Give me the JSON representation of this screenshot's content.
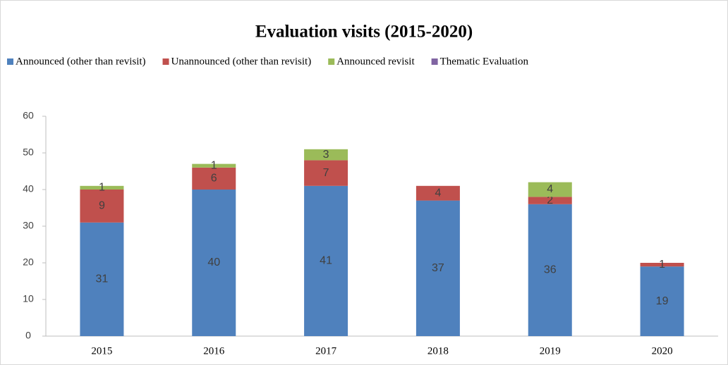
{
  "chart_data": {
    "type": "bar",
    "stacked": true,
    "title": "Evaluation visits (2015-2020)",
    "categories": [
      "2015",
      "2016",
      "2017",
      "2018",
      "2019",
      "2020"
    ],
    "series": [
      {
        "name": "Announced (other than revisit)",
        "color": "#4f81bd",
        "values": [
          31,
          40,
          41,
          37,
          36,
          19
        ]
      },
      {
        "name": "Unannounced (other than revisit)",
        "color": "#c0504d",
        "values": [
          9,
          6,
          7,
          4,
          2,
          1
        ]
      },
      {
        "name": "Announced revisit",
        "color": "#9bbb59",
        "values": [
          1,
          1,
          3,
          null,
          4,
          null
        ]
      },
      {
        "name": "Thematic Evaluation",
        "color": "#8064a2",
        "values": [
          null,
          null,
          null,
          null,
          null,
          null
        ]
      }
    ],
    "ylim": [
      0,
      60
    ],
    "yticks": [
      0,
      10,
      20,
      30,
      40,
      50,
      60
    ],
    "legend": "top"
  }
}
